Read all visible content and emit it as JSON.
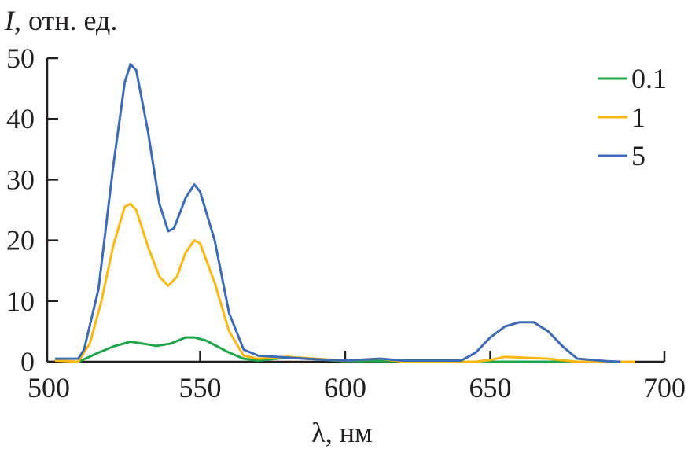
{
  "chart_data": {
    "type": "line",
    "title": "",
    "ylabel_italic": "I",
    "ylabel_rest": ", отн. ед.",
    "xlabel": "λ, нм",
    "xlim": [
      500,
      700
    ],
    "ylim": [
      0,
      50
    ],
    "xticks": [
      500,
      550,
      600,
      650,
      700
    ],
    "yticks": [
      0,
      10,
      20,
      30,
      40,
      50
    ],
    "grid": false,
    "legend_position": "top-right",
    "series": [
      {
        "name": "0.1",
        "color": "#1fa64a",
        "x": [
          508,
          510,
          515,
          520,
          526,
          530,
          535,
          540,
          545,
          548,
          552,
          560,
          565,
          570,
          580,
          590,
          600,
          620,
          640,
          660,
          680,
          700
        ],
        "y": [
          0,
          0.4,
          1.5,
          2.5,
          3.3,
          3,
          2.6,
          3,
          4,
          4,
          3.5,
          1.5,
          0.5,
          0.2,
          0.7,
          0.4,
          0.1,
          0.1,
          0,
          0,
          0,
          0
        ]
      },
      {
        "name": "1",
        "color": "#fbb812",
        "x": [
          500,
          508,
          512,
          516,
          520,
          524,
          526,
          528,
          532,
          536,
          539,
          542,
          545,
          548,
          550,
          555,
          560,
          565,
          570,
          580,
          590,
          600,
          612,
          620,
          645,
          650,
          655,
          670,
          680,
          700
        ],
        "y": [
          0.2,
          0,
          3,
          10,
          19,
          25.5,
          26,
          25,
          19,
          14,
          12.5,
          14,
          18,
          20,
          19.5,
          13,
          5,
          1,
          0.5,
          0.8,
          0.5,
          0.2,
          0.5,
          0,
          0,
          0.3,
          0.8,
          0.5,
          0,
          0
        ]
      },
      {
        "name": "5",
        "color": "#3d6bb5",
        "x": [
          500,
          508,
          510,
          515,
          520,
          524,
          526,
          528,
          532,
          536,
          539,
          541,
          545,
          548,
          550,
          555,
          560,
          565,
          570,
          580,
          590,
          600,
          612,
          620,
          640,
          645,
          650,
          655,
          660,
          665,
          670,
          675,
          680,
          690,
          695
        ],
        "y": [
          0.5,
          0.5,
          2,
          12,
          32,
          46,
          49,
          48,
          38,
          26,
          21.5,
          22,
          27,
          29.2,
          28,
          20,
          8,
          2,
          1,
          0.7,
          0.4,
          0.2,
          0.5,
          0.2,
          0.2,
          1.5,
          4,
          5.8,
          6.5,
          6.5,
          5,
          2.5,
          0.5,
          0.1,
          0
        ]
      }
    ]
  }
}
